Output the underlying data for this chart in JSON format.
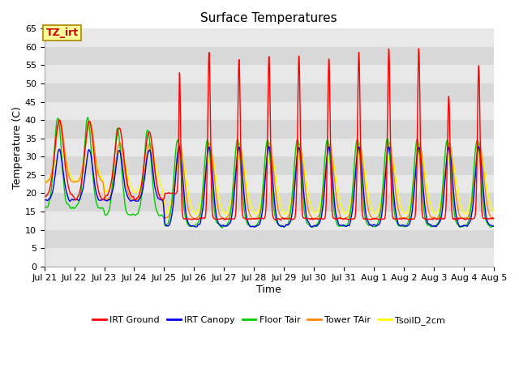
{
  "title": "Surface Temperatures",
  "xlabel": "Time",
  "ylabel": "Temperature (C)",
  "ylim": [
    0,
    65
  ],
  "yticks": [
    0,
    5,
    10,
    15,
    20,
    25,
    30,
    35,
    40,
    45,
    50,
    55,
    60,
    65
  ],
  "xtick_labels": [
    "Jul 21",
    "Jul 22",
    "Jul 23",
    "Jul 24",
    "Jul 25",
    "Jul 26",
    "Jul 27",
    "Jul 28",
    "Jul 29",
    "Jul 30",
    "Jul 31",
    "Aug 1",
    "Aug 2",
    "Aug 3",
    "Aug 4",
    "Aug 5"
  ],
  "annotation_text": "TZ_irt",
  "annotation_color": "#cc0000",
  "annotation_bg": "#ffff99",
  "annotation_border": "#aa8800",
  "series_colors": {
    "IRT Ground": "#ff0000",
    "IRT Canopy": "#0000ee",
    "Floor Tair": "#00cc00",
    "Tower TAir": "#ff8800",
    "TsoilD_2cm": "#ffff00"
  },
  "plot_bg_light": "#f5f5f5",
  "plot_bg_dark": "#dcdcdc",
  "title_fontsize": 11,
  "axis_fontsize": 9,
  "tick_fontsize": 8,
  "legend_fontsize": 8,
  "linewidth": 1.0
}
